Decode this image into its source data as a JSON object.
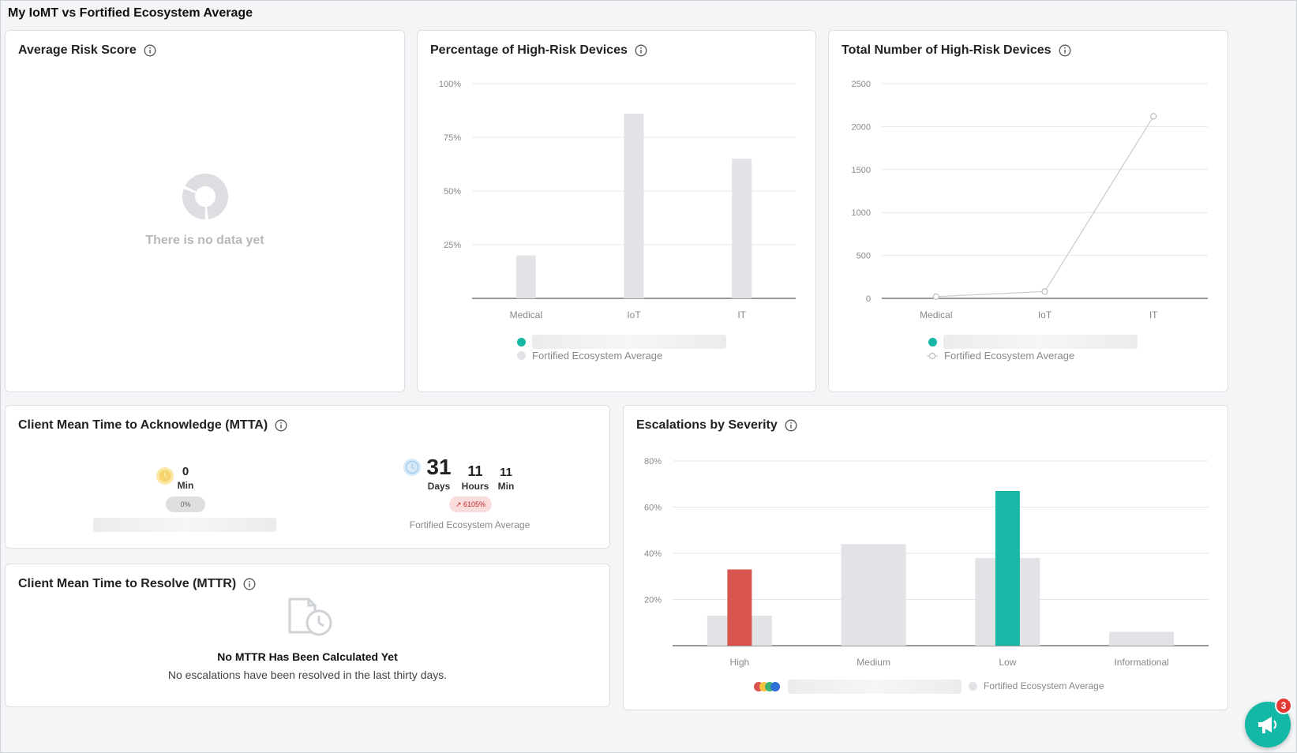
{
  "page": {
    "title": "My IoMT vs Fortified Ecosystem Average"
  },
  "colors": {
    "teal": "#17b8a6",
    "red": "#d9534f",
    "gray_bar": "#e1e3e6",
    "yellow": "#f5d36b",
    "blue": "#4a90d9",
    "green": "#3cb371"
  },
  "risk_score": {
    "title": "Average Risk Score",
    "empty_text": "There is no data yet"
  },
  "pct_high_risk": {
    "title": "Percentage of High-Risk Devices",
    "legend_avg": "Fortified Ecosystem Average",
    "chart_data": {
      "type": "bar",
      "categories": [
        "Medical",
        "IoT",
        "IT"
      ],
      "series": [
        {
          "name": "Fortified Ecosystem Average",
          "values": [
            20,
            86,
            65
          ]
        }
      ],
      "yticks": [
        "25%",
        "50%",
        "75%",
        "100%"
      ],
      "ylim": [
        0,
        100
      ]
    }
  },
  "total_high_risk": {
    "title": "Total Number of High-Risk Devices",
    "legend_avg": "Fortified Ecosystem Average",
    "chart_data": {
      "type": "line",
      "categories": [
        "Medical",
        "IoT",
        "IT"
      ],
      "series": [
        {
          "name": "Fortified Ecosystem Average",
          "values": [
            20,
            80,
            2120
          ]
        }
      ],
      "yticks": [
        "0",
        "500",
        "1000",
        "1500",
        "2000",
        "2500"
      ],
      "ylim": [
        0,
        2500
      ]
    }
  },
  "mtta": {
    "title": "Client Mean Time to Acknowledge (MTTA)",
    "client": {
      "value": "0",
      "unit": "Min",
      "badge": "0%"
    },
    "avg": {
      "days": "31",
      "days_unit": "Days",
      "hours": "11",
      "hours_unit": "Hours",
      "mins": "11",
      "mins_unit": "Min",
      "badge": "↗ 6105%",
      "label": "Fortified Ecosystem Average"
    }
  },
  "mttr": {
    "title": "Client Mean Time to Resolve (MTTR)",
    "heading": "No MTTR Has Been Calculated Yet",
    "message": "No escalations have been resolved in the last thirty days."
  },
  "escalations": {
    "title": "Escalations by Severity",
    "legend_avg": "Fortified Ecosystem Average",
    "chart_data": {
      "type": "bar",
      "categories": [
        "High",
        "Medium",
        "Low",
        "Informational"
      ],
      "series": [
        {
          "name": "Fortified Ecosystem Average",
          "values": [
            13,
            44,
            38,
            6
          ]
        },
        {
          "values": [
            33,
            null,
            67,
            null
          ],
          "colors": [
            "#d9534f",
            null,
            "#17b8a6",
            null
          ]
        }
      ],
      "yticks": [
        "20%",
        "40%",
        "60%",
        "80%"
      ],
      "ylim": [
        0,
        80
      ]
    }
  },
  "notifications": {
    "count": "3"
  }
}
